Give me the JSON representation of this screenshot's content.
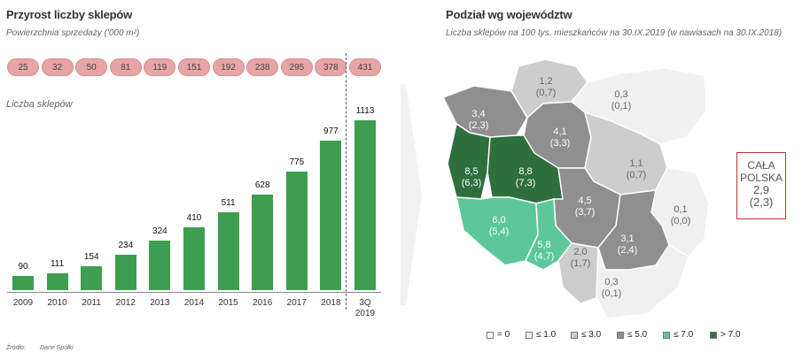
{
  "left": {
    "title": "Przyrost liczby sklepów",
    "subtitle": "Powierzchnia sprzedaży ('000 m²)",
    "area_values": [
      "25",
      "32",
      "50",
      "81",
      "119",
      "151",
      "192",
      "238",
      "295",
      "378",
      "431"
    ],
    "bars_label": "Liczba sklepów",
    "source_label": "Źródło:",
    "source_value": "Dane Spółki"
  },
  "chart_data": {
    "type": "bar",
    "title": "Przyrost liczby sklepów",
    "categories": [
      "2009",
      "2010",
      "2011",
      "2012",
      "2013",
      "2014",
      "2015",
      "2016",
      "2017",
      "2018",
      "3Q 2019"
    ],
    "series": [
      {
        "name": "Liczba sklepów",
        "values": [
          90,
          111,
          154,
          234,
          324,
          410,
          511,
          628,
          775,
          977,
          1113
        ]
      },
      {
        "name": "Powierzchnia sprzedaży ('000 m²)",
        "values": [
          25,
          32,
          50,
          81,
          119,
          151,
          192,
          238,
          295,
          378,
          431
        ]
      }
    ],
    "ylim": [
      0,
      1113
    ]
  },
  "right": {
    "title": "Podział wg województw",
    "subtitle": "Liczba sklepów na 100 tys. mieszkańców na 30.IX.2019 (w nawiasach na 30.IX.2018)",
    "regions": [
      {
        "v": "3,4",
        "p": "(2,3)",
        "color": "#8f8f8f"
      },
      {
        "v": "1,2",
        "p": "(0,7)",
        "color": "#cdcdcd"
      },
      {
        "v": "0,3",
        "p": "(0,1)",
        "color": "#f0f0f0"
      },
      {
        "v": "4,1",
        "p": "(3,3)",
        "color": "#8f8f8f"
      },
      {
        "v": "8,5",
        "p": "(6,3)",
        "color": "#2e6f3e"
      },
      {
        "v": "8,8",
        "p": "(7,3)",
        "color": "#2e6f3e"
      },
      {
        "v": "1,1",
        "p": "(0,7)",
        "color": "#cdcdcd"
      },
      {
        "v": "4,5",
        "p": "(3,7)",
        "color": "#8f8f8f"
      },
      {
        "v": "0,1",
        "p": "(0,0)",
        "color": "#f0f0f0"
      },
      {
        "v": "6,0",
        "p": "(5,4)",
        "color": "#5cc89a"
      },
      {
        "v": "5,8",
        "p": "(4,7)",
        "color": "#5cc89a"
      },
      {
        "v": "2,0",
        "p": "(1,7)",
        "color": "#cdcdcd"
      },
      {
        "v": "3,1",
        "p": "(2,4)",
        "color": "#8f8f8f"
      },
      {
        "v": "0,3",
        "p": "(0,1)",
        "color": "#f0f0f0"
      }
    ],
    "total": {
      "line1": "CAŁA",
      "line2": "POLSKA",
      "value": "2,9",
      "prev": "(2,3)"
    },
    "legend": [
      {
        "label": "= 0",
        "color": "#ffffff"
      },
      {
        "label": "≤ 1.0",
        "color": "#f0f0f0"
      },
      {
        "label": "≤ 3.0",
        "color": "#cdcdcd"
      },
      {
        "label": "≤ 5.0",
        "color": "#8f8f8f"
      },
      {
        "label": "≤ 7.0",
        "color": "#5cc89a"
      },
      {
        "label": "> 7.0",
        "color": "#2e6f3e"
      }
    ]
  }
}
